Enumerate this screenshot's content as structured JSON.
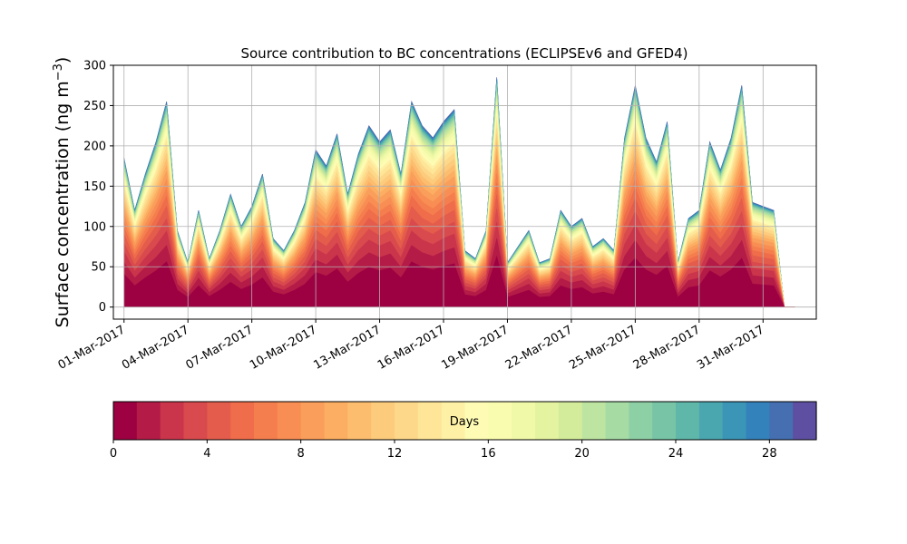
{
  "chart_data": {
    "type": "area",
    "stacked": true,
    "title": "Source contribution to BC concentrations (ECLIPSEv6 and GFED4)",
    "ylabel": "Surface concentration (ng m",
    "ylabel_exponent": "−3",
    "ylabel_close": ")",
    "ylim": [
      -15,
      300
    ],
    "xlim": [
      "2017-02-28T12:00",
      "2017-04-02T12:00"
    ],
    "grid": true,
    "yticks": [
      0,
      50,
      100,
      150,
      200,
      250,
      300
    ],
    "xticks": [
      "01-Mar-2017",
      "04-Mar-2017",
      "07-Mar-2017",
      "10-Mar-2017",
      "13-Mar-2017",
      "16-Mar-2017",
      "19-Mar-2017",
      "22-Mar-2017",
      "25-Mar-2017",
      "28-Mar-2017",
      "31-Mar-2017"
    ],
    "x": [
      "2017-03-01",
      "2017-03-01T12:00",
      "2017-03-02",
      "2017-03-02T12:00",
      "2017-03-03",
      "2017-03-03T12:00",
      "2017-03-04",
      "2017-03-04T12:00",
      "2017-03-05",
      "2017-03-05T12:00",
      "2017-03-06",
      "2017-03-06T12:00",
      "2017-03-07",
      "2017-03-07T12:00",
      "2017-03-08",
      "2017-03-08T12:00",
      "2017-03-09",
      "2017-03-09T12:00",
      "2017-03-10",
      "2017-03-10T12:00",
      "2017-03-11",
      "2017-03-11T12:00",
      "2017-03-12",
      "2017-03-12T12:00",
      "2017-03-13",
      "2017-03-13T12:00",
      "2017-03-14",
      "2017-03-14T12:00",
      "2017-03-15",
      "2017-03-15T12:00",
      "2017-03-16",
      "2017-03-16T12:00",
      "2017-03-17",
      "2017-03-17T12:00",
      "2017-03-18",
      "2017-03-18T12:00",
      "2017-03-19",
      "2017-03-19T12:00",
      "2017-03-20",
      "2017-03-20T12:00",
      "2017-03-21",
      "2017-03-21T12:00",
      "2017-03-22",
      "2017-03-22T12:00",
      "2017-03-23",
      "2017-03-23T12:00",
      "2017-03-24",
      "2017-03-24T12:00",
      "2017-03-25",
      "2017-03-25T12:00",
      "2017-03-26",
      "2017-03-26T12:00",
      "2017-03-27",
      "2017-03-27T12:00",
      "2017-03-28",
      "2017-03-28T12:00",
      "2017-03-29",
      "2017-03-29T12:00",
      "2017-03-30",
      "2017-03-30T12:00",
      "2017-03-31",
      "2017-03-31T12:00",
      "2017-04-01",
      "2017-04-01T12:00"
    ],
    "total": [
      185,
      120,
      165,
      205,
      255,
      95,
      55,
      120,
      60,
      95,
      140,
      100,
      125,
      165,
      85,
      70,
      95,
      130,
      195,
      175,
      215,
      140,
      190,
      225,
      205,
      220,
      165,
      255,
      225,
      210,
      230,
      245,
      70,
      60,
      95,
      285,
      55,
      75,
      95,
      55,
      60,
      120,
      100,
      110,
      75,
      85,
      70,
      210,
      275,
      210,
      180,
      230,
      55,
      110,
      120,
      205,
      170,
      210,
      275,
      130,
      125,
      120,
      0,
      0
    ],
    "band_fractions": {
      "days": [
        1,
        2,
        3,
        4,
        5,
        6,
        7,
        8,
        9,
        10,
        11,
        12,
        13,
        14,
        15,
        16,
        17,
        18,
        19,
        20,
        21,
        22,
        23,
        24,
        25,
        26,
        27,
        28,
        29,
        30
      ],
      "cumulative": [
        0.22,
        0.3,
        0.37,
        0.43,
        0.49,
        0.54,
        0.58,
        0.62,
        0.66,
        0.69,
        0.72,
        0.75,
        0.78,
        0.81,
        0.83,
        0.85,
        0.87,
        0.89,
        0.905,
        0.92,
        0.935,
        0.948,
        0.958,
        0.967,
        0.975,
        0.982,
        0.988,
        0.993,
        0.997,
        1.0
      ]
    },
    "colorbar": {
      "label": "Days",
      "range": [
        0,
        30
      ],
      "ticks": [
        0,
        4,
        8,
        12,
        16,
        20,
        24,
        28
      ],
      "colors": [
        "#9e0142",
        "#b41b47",
        "#ca354b",
        "#d84a4d",
        "#e45c4b",
        "#ef6d4a",
        "#f57e4e",
        "#f88e53",
        "#fa9e5b",
        "#fcae62",
        "#fdbd6f",
        "#fdcb7c",
        "#fdd88a",
        "#fee597",
        "#fef0a5",
        "#fefcb4",
        "#f9fcaf",
        "#f0f9a8",
        "#e3f39f",
        "#d3ec9b",
        "#bde4a0",
        "#a6dba4",
        "#8ed0a5",
        "#77c5a6",
        "#5fb7aa",
        "#4aa7b0",
        "#3a95b7",
        "#3482bb",
        "#456fb1",
        "#5e4fa2"
      ]
    }
  }
}
